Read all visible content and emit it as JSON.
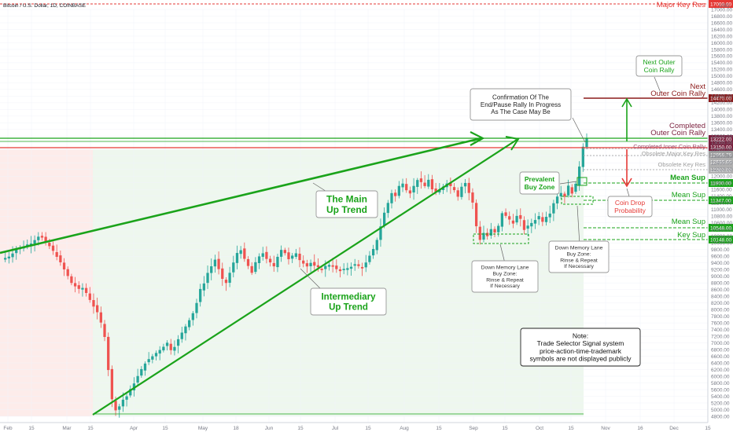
{
  "header": {
    "symbol": "Bitcoin / U.S. Dollar, 1D, COINBASE"
  },
  "axis": {
    "currency": "USD"
  },
  "chart_data": {
    "type": "candlestick",
    "title": "Bitcoin / U.S. Dollar, 1D, COINBASE",
    "ylim": [
      4800,
      17000
    ],
    "ytick_step": 200,
    "x_tick_labels": [
      "Feb",
      "15",
      "Mar",
      "15",
      "Apr",
      "15",
      "May",
      "18",
      "Jun",
      "15",
      "Jul",
      "15",
      "Aug",
      "15",
      "Sep",
      "15",
      "Oct",
      "15",
      "Nov",
      "16",
      "Dec",
      "15"
    ],
    "price_series": [
      9500,
      9550,
      9600,
      9700,
      9800,
      9850,
      9900,
      9950,
      10000,
      10100,
      10200,
      10150,
      10000,
      9900,
      9750,
      9600,
      9400,
      9200,
      9000,
      8800,
      8700,
      8600,
      8650,
      8500,
      8300,
      8100,
      7900,
      7600,
      7200,
      6200,
      5300,
      5000,
      5100,
      5300,
      5400,
      5600,
      5800,
      6000,
      6200,
      6400,
      6500,
      6600,
      6700,
      6800,
      6900,
      7000,
      6800,
      6900,
      7100,
      7300,
      7500,
      7700,
      7900,
      8200,
      8600,
      8800,
      9100,
      9300,
      9500,
      9200,
      8900,
      8800,
      9100,
      9400,
      9700,
      9800,
      9500,
      9300,
      9100,
      9400,
      9600,
      9700,
      9500,
      9400,
      9300,
      9600,
      9800,
      9700,
      9500,
      9600,
      9700,
      9500,
      9400,
      9300,
      9400,
      9300,
      9250,
      9200,
      9300,
      9350,
      9300,
      9200,
      9150,
      9200,
      9250,
      9300,
      9350,
      9300,
      9250,
      9400,
      9600,
      9800,
      10100,
      10500,
      10900,
      11200,
      11500,
      11400,
      11700,
      11800,
      11600,
      11500,
      11700,
      11900,
      11800,
      11700,
      11900,
      11600,
      11500,
      11600,
      11700,
      11800,
      11700,
      11600,
      11400,
      11700,
      11800,
      11500,
      11200,
      10500,
      10100,
      10300,
      10200,
      10400,
      10300,
      10500,
      10900,
      10800,
      10700,
      10600,
      10800,
      10700,
      10400,
      10500,
      10600,
      10700,
      10800,
      10650,
      10800,
      10900,
      11200,
      11400,
      11500,
      11400,
      11700,
      11500,
      11750,
      12300,
      12900,
      13150
    ],
    "levels": [
      {
        "label": "Major Key Res",
        "value": "17000.00"
      },
      {
        "label": "Next Outer Coin Rally",
        "value": "14470.00"
      },
      {
        "label": "Completed Outer Coin Rally",
        "value": "13222.00"
      },
      {
        "label": "Completed Inner Coin Rally",
        "value": "13150.00"
      },
      {
        "label": "Obsolete Major Key Res",
        "value": "12958.79"
      },
      {
        "label": "Obsolete Key Res",
        "value": "12930.00"
      },
      {
        "label": "",
        "value": "12300.00"
      },
      {
        "label": "Mean Sup",
        "value": "11900.00"
      },
      {
        "label": "Mean Sup",
        "value": "11347.00"
      },
      {
        "label": "Mean Sup",
        "value": "10548.00"
      },
      {
        "label": "Key Sup",
        "value": "10148.00"
      }
    ]
  },
  "annotations": {
    "main_trend": "The Main\nUp Trend",
    "intermediary_trend": "Intermediary\nUp Trend",
    "confirmation": "Confirmation Of The\nEnd/Pause Rally In Progress\nAs The Case May Be",
    "next_outer_rally": "Next Outer\nCoin Rally",
    "prevalent_buy_zone": "Prevalent\nBuy Zone",
    "coin_drop": "Coin Drop\nProbability",
    "dml_left": "Down Memory Lane\nBuy Zone:\nRinse & Repeat\nIf Necessary",
    "dml_right": "Down Memory Lane\nBuy Zone:\nRinse & Repeat\nIf Necessary",
    "note": "Note:\nTrade Selector Signal system\nprice-action-time-trademark\nsymbols are not displayed publicly"
  },
  "colors": {
    "up": "#26a69a",
    "down": "#ef5350",
    "green": "#1aa31a",
    "dark_red": "#8b1a1a",
    "red": "#e53935",
    "maroon": "#7a1f3d",
    "grid": "#f0f3fa"
  }
}
